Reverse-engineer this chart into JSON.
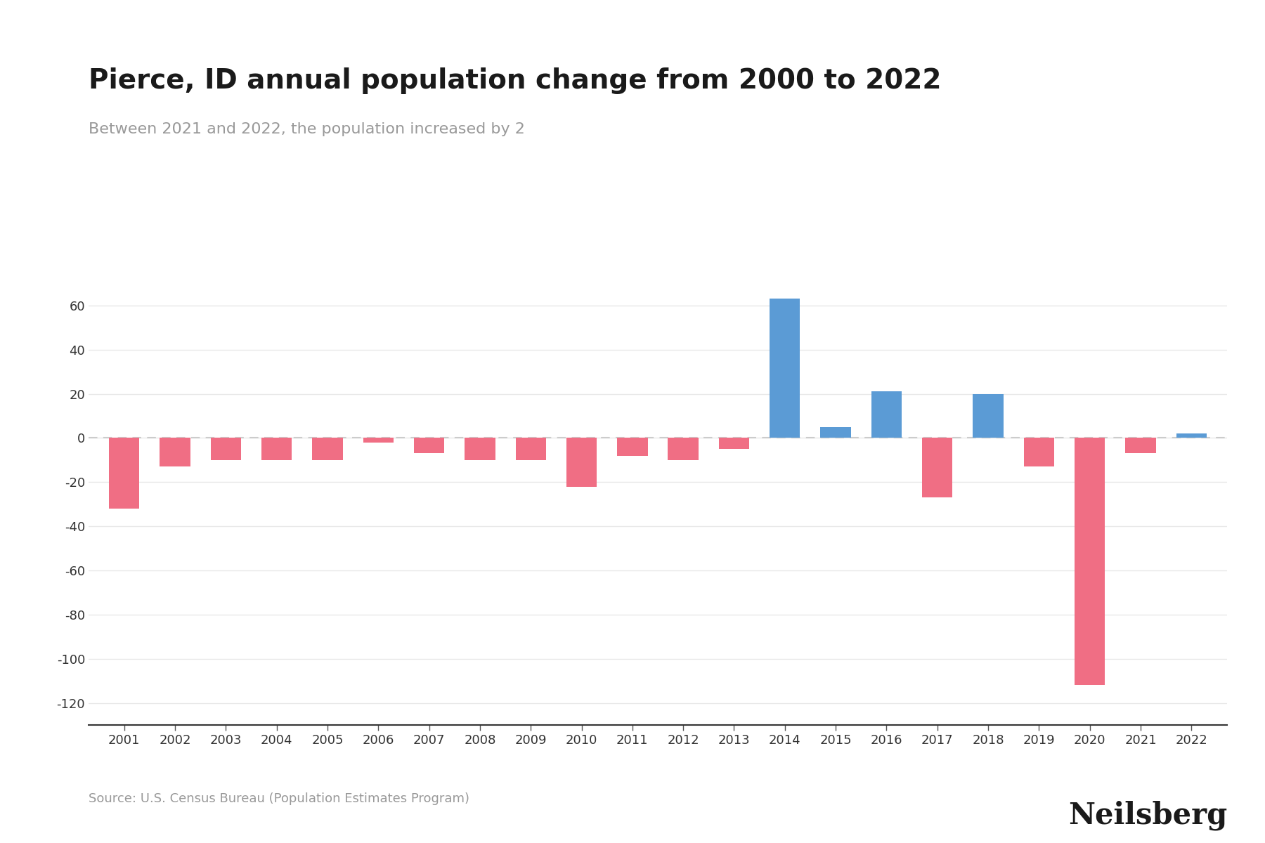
{
  "title": "Pierce, ID annual population change from 2000 to 2022",
  "subtitle": "Between 2021 and 2022, the population increased by 2",
  "source": "Source: U.S. Census Bureau (Population Estimates Program)",
  "branding": "Neilsberg",
  "years": [
    2001,
    2002,
    2003,
    2004,
    2005,
    2006,
    2007,
    2008,
    2009,
    2010,
    2011,
    2012,
    2013,
    2014,
    2015,
    2016,
    2017,
    2018,
    2019,
    2020,
    2021,
    2022
  ],
  "values": [
    -32,
    -13,
    -10,
    -10,
    -10,
    -2,
    -7,
    -10,
    -10,
    -22,
    -8,
    -10,
    -5,
    63,
    5,
    21,
    -27,
    20,
    -13,
    -112,
    -7,
    2
  ],
  "color_positive": "#5b9bd5",
  "color_negative": "#f06e84",
  "background_color": "#ffffff",
  "title_fontsize": 28,
  "subtitle_fontsize": 16,
  "ylabel": "",
  "ylim": [
    -130,
    80
  ],
  "yticks": [
    -120,
    -100,
    -80,
    -60,
    -40,
    -20,
    0,
    20,
    40,
    60
  ],
  "grid_color": "#e8e8e8",
  "axis_label_color": "#333333",
  "subtitle_color": "#999999",
  "source_color": "#999999",
  "source_fontsize": 13,
  "branding_fontsize": 30,
  "tick_fontsize": 13
}
